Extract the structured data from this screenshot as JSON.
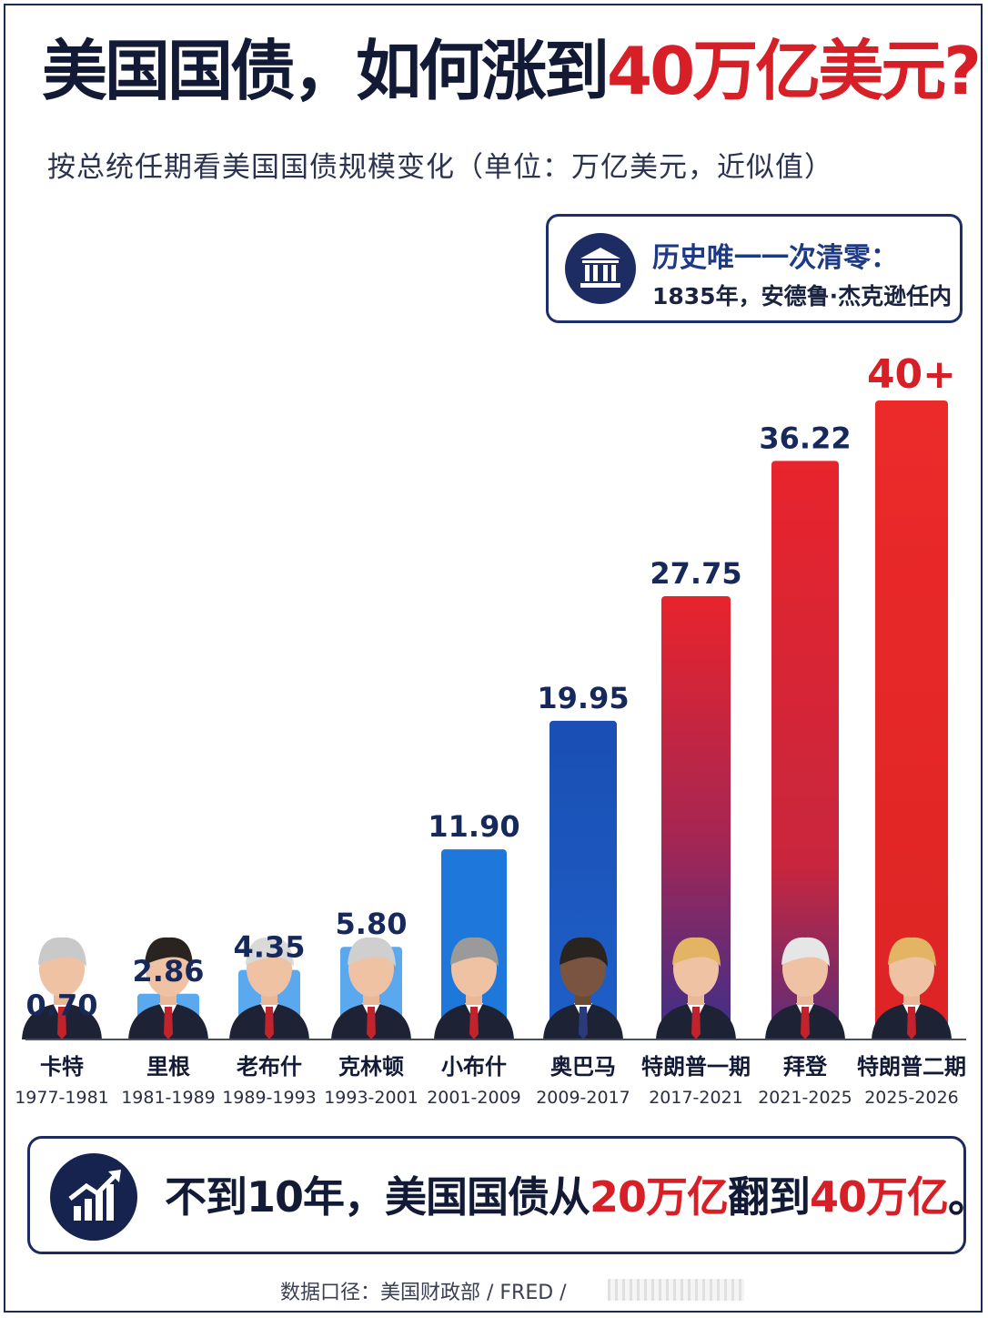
{
  "title": {
    "prefix": "美国国债，如何涨到",
    "highlight": "40万亿美元?"
  },
  "subtitle": "按总统任期看美国国债规模变化（单位：万亿美元，近似值）",
  "callout": {
    "icon": "bank-building-icon",
    "heading": "历史唯一一次清零：",
    "text": "1835年，安德鲁·杰克逊任内"
  },
  "chart_data": {
    "type": "bar",
    "title": "美国国债，如何涨到40万亿美元?",
    "subtitle": "按总统任期看美国国债规模变化（单位：万亿美元，近似值）",
    "categories": [
      "卡特",
      "里根",
      "老布什",
      "克林顿",
      "小布什",
      "奥巴马",
      "特朗普一期",
      "拜登",
      "特朗普二期"
    ],
    "periods": [
      "1977-1981",
      "1981-1989",
      "1989-1993",
      "1993-2001",
      "2001-2009",
      "2009-2017",
      "2017-2021",
      "2021-2025",
      "2025-2026"
    ],
    "values": [
      0.7,
      2.86,
      4.35,
      5.8,
      11.9,
      19.95,
      27.75,
      36.22,
      40
    ],
    "labels": [
      "0.70",
      "2.86",
      "4.35",
      "5.80",
      "11.90",
      "19.95",
      "27.75",
      "36.22",
      "40+"
    ],
    "ylim": [
      0,
      40
    ],
    "xlabel": "",
    "ylabel": "",
    "grid": false,
    "legend": "none",
    "colors": {
      "light_blue": "#5aa8ee",
      "blue": "#1e78dc",
      "dark_blue": "#1a4fb4",
      "red": "#e8242c",
      "label_blue": "#17285a",
      "label_red": "#d61f26"
    }
  },
  "banner": {
    "icon": "rising-chart-icon",
    "part1": "不到10年，美国国债从",
    "hl1": "20万亿",
    "part2": "翻到",
    "hl2": "40万亿",
    "part3": "。"
  },
  "source": "数据口径：美国财政部 / FRED /"
}
